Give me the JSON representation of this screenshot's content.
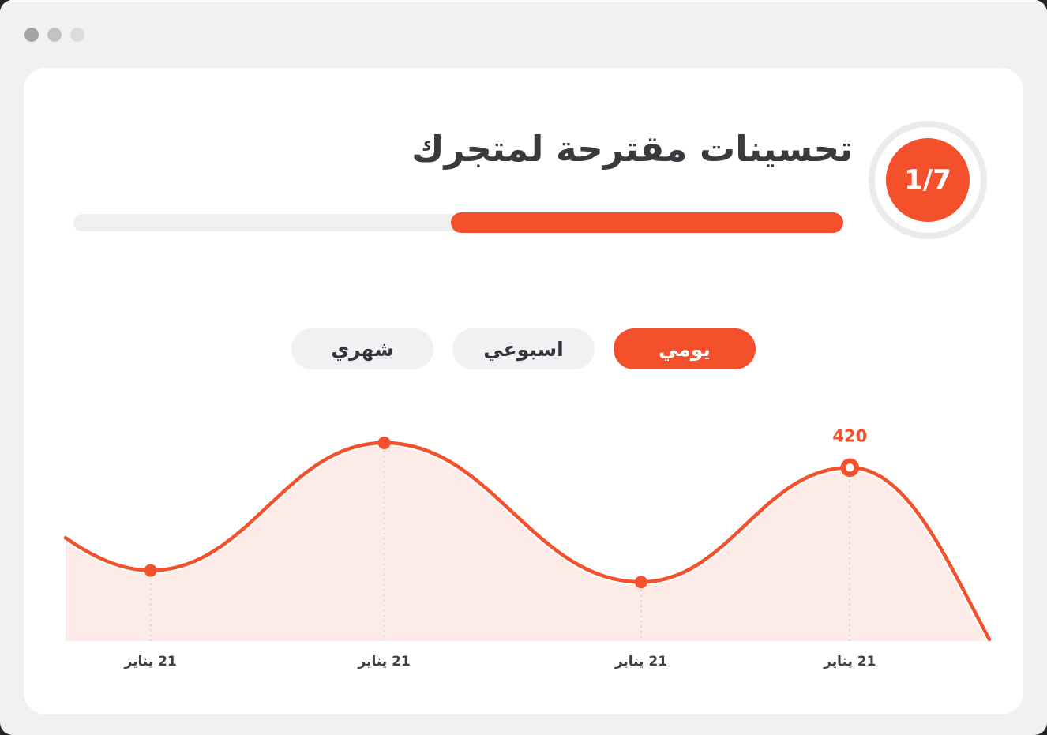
{
  "titlebar": {
    "buttons": [
      "close",
      "minimize",
      "zoom"
    ]
  },
  "header": {
    "title": "تحسينات مقترحة لمتجرك",
    "step_badge": "1/7"
  },
  "progress": {
    "percent": 51
  },
  "filters": [
    {
      "label": "يومي",
      "active": true
    },
    {
      "label": "اسبوعي",
      "active": false
    },
    {
      "label": "شهري",
      "active": false
    }
  ],
  "chart_data": {
    "type": "area",
    "title": "",
    "xlabel": "",
    "ylabel": "",
    "ylim": [
      0,
      520
    ],
    "grid": false,
    "legend": false,
    "categories": [
      "21 يناير",
      "21 يناير",
      "21 يناير",
      "21 يناير"
    ],
    "values": [
      171,
      480,
      143,
      420
    ],
    "highlight_label": "420",
    "highlight_index": 3,
    "points": [
      {
        "x_frac": 0.0,
        "value": 250,
        "marker": "none",
        "category": null,
        "label": null
      },
      {
        "x_frac": 0.092,
        "value": 171,
        "marker": "solid",
        "category": "21 يناير",
        "label": null
      },
      {
        "x_frac": 0.345,
        "value": 480,
        "marker": "solid",
        "category": "21 يناير",
        "label": null
      },
      {
        "x_frac": 0.623,
        "value": 143,
        "marker": "solid",
        "category": "21 يناير",
        "label": null
      },
      {
        "x_frac": 0.849,
        "value": 420,
        "marker": "hollow",
        "category": "21 يناير",
        "label": "420"
      },
      {
        "x_frac": 1.0,
        "value": 4,
        "marker": "none",
        "category": null,
        "label": null
      }
    ],
    "line_color": "#F4502B",
    "fill_color": "#FCEBE6",
    "dash_color": "#CFCFCF",
    "label_color": "#F4502B"
  },
  "colors": {
    "accent": "#F4502B",
    "accent_soft": "#FCEBE6",
    "window_bg": "#F1F1F2",
    "track": "#EFEFEF",
    "title_text": "#3A3A3E",
    "pill_bg": "#F1F1F3",
    "traffic_dots": [
      "#A4A4A4",
      "#C2C2C2",
      "#DCDCDC"
    ]
  }
}
